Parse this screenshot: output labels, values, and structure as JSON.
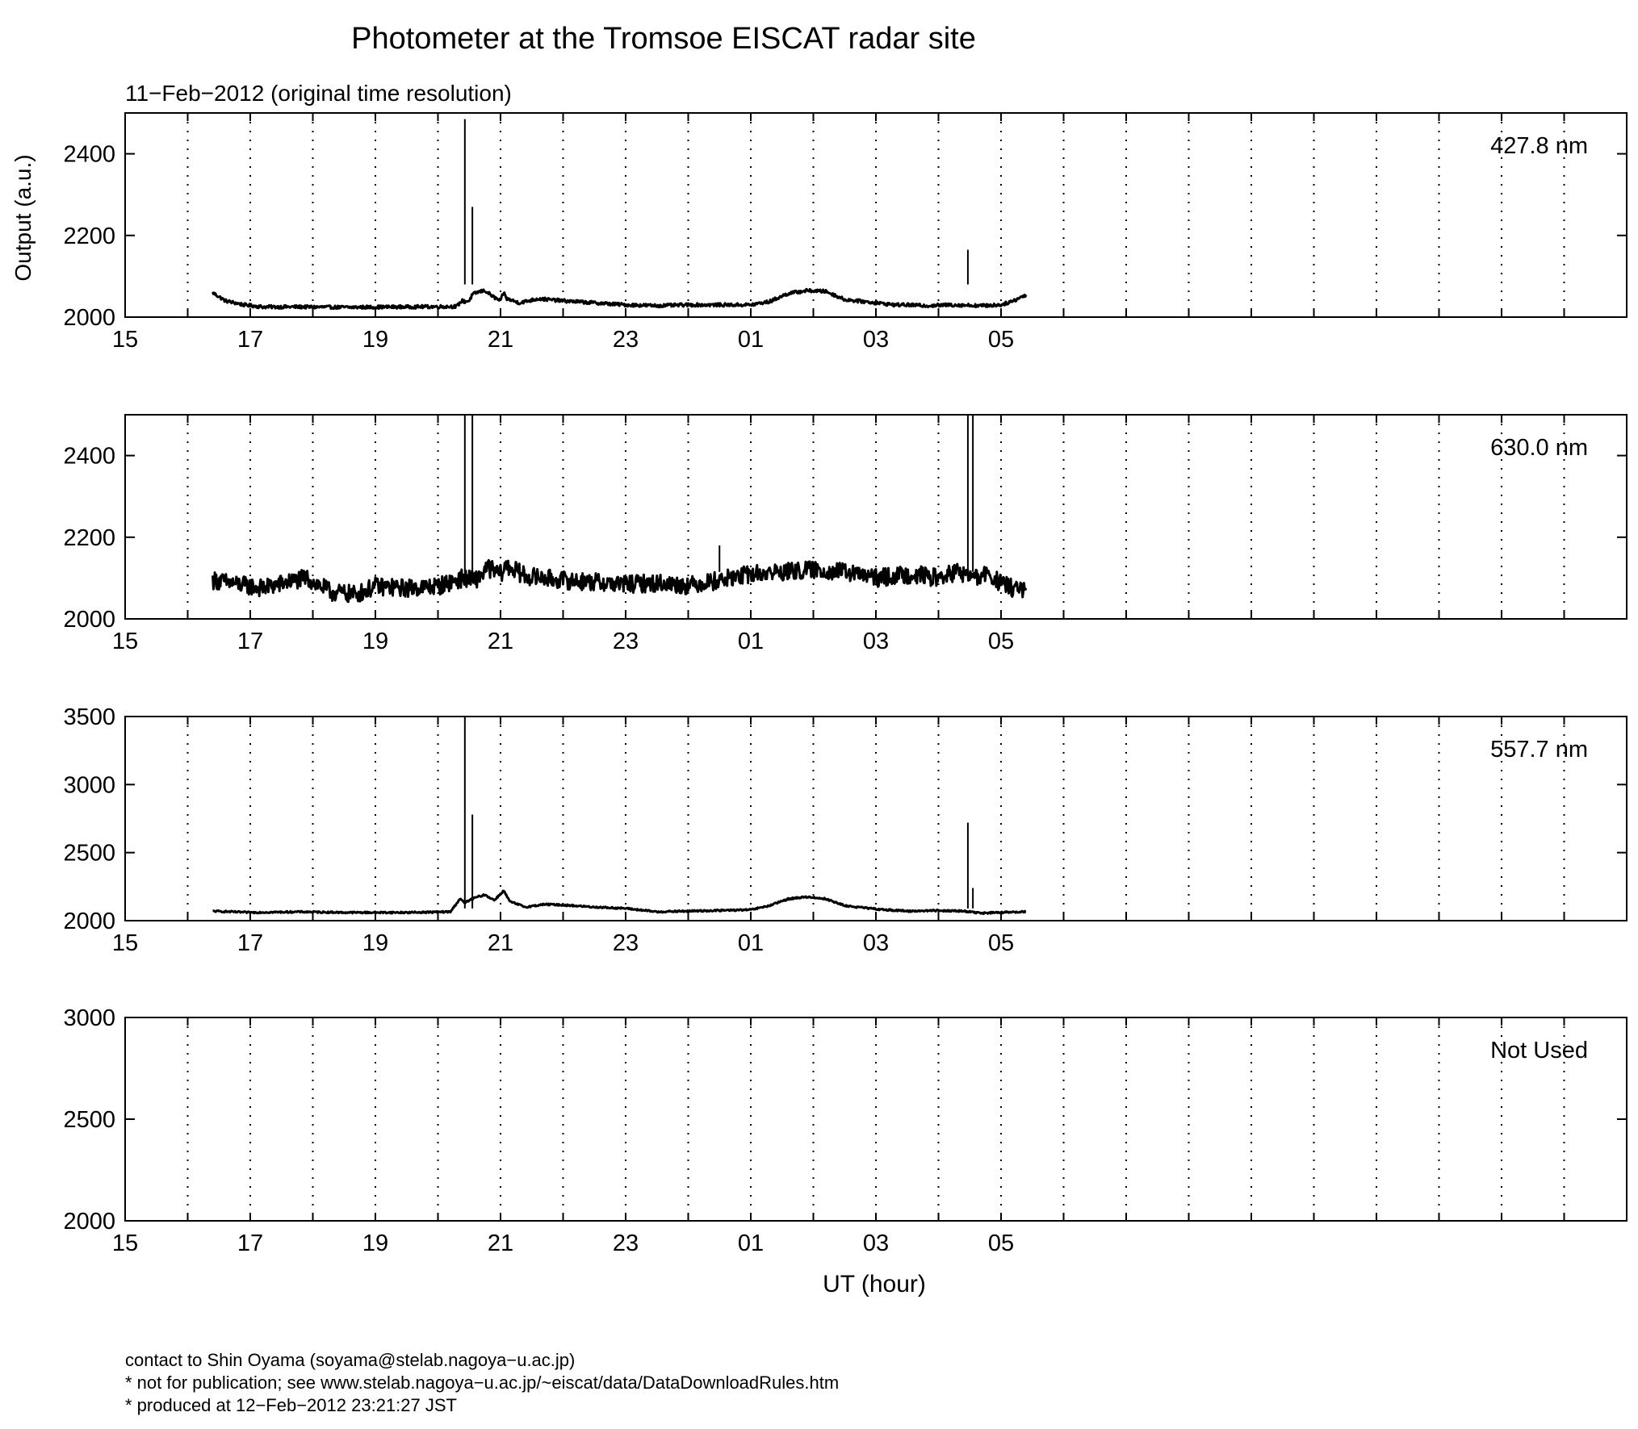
{
  "title": "Photometer at the Tromsoe EISCAT radar site",
  "subtitle": "11−Feb−2012 (original time resolution)",
  "ylabel": "Output (a.u.)",
  "xlabel": "UT (hour)",
  "footer": {
    "line1": "contact to Shin Oyama (soyama@stelab.nagoya−u.ac.jp)",
    "line2": "* not for publication; see www.stelab.nagoya−u.ac.jp/~eiscat/data/DataDownloadRules.htm",
    "line3": "* produced at 12−Feb−2012 23:21:27 JST"
  },
  "chart_data": [
    {
      "type": "line",
      "panel_label": "427.8 nm",
      "xlim": [
        15,
        39
      ],
      "ylim": [
        2000,
        2500
      ],
      "yticks": [
        2000,
        2200,
        2400
      ],
      "xtick_labels": [
        "15",
        "17",
        "19",
        "21",
        "23",
        "01",
        "03",
        "05"
      ],
      "grid": "dotted vertical",
      "noise_amplitude": 4,
      "series": [
        {
          "x": [
            16.4,
            16.6,
            16.9,
            17.2,
            17.8,
            18.5,
            19.5,
            20.3,
            20.38,
            20.43,
            20.5,
            20.55,
            20.65,
            20.75,
            20.9,
            21.0,
            21.05,
            21.1,
            21.3,
            21.6,
            22.0,
            22.5,
            23.0,
            23.5,
            24.0,
            24.5,
            25.0,
            25.3,
            25.6,
            25.9,
            26.2,
            26.5,
            27.0,
            27.3,
            27.5,
            27.8,
            28.2,
            28.7,
            29.0,
            29.2,
            29.4
          ],
          "y": [
            2060,
            2040,
            2030,
            2025,
            2025,
            2024,
            2025,
            2026,
            2040,
            2038,
            2040,
            2055,
            2062,
            2065,
            2048,
            2040,
            2060,
            2045,
            2035,
            2045,
            2040,
            2035,
            2030,
            2028,
            2030,
            2030,
            2030,
            2038,
            2058,
            2065,
            2063,
            2043,
            2035,
            2030,
            2030,
            2028,
            2030,
            2028,
            2030,
            2040,
            2055
          ]
        }
      ],
      "spikes": [
        {
          "x": 20.43,
          "y": 2485
        },
        {
          "x": 20.55,
          "y": 2270
        },
        {
          "x": 28.47,
          "y": 2165
        },
        {
          "x": 28.55,
          "y": 2065
        }
      ]
    },
    {
      "type": "line",
      "panel_label": "630.0 nm",
      "xlim": [
        15,
        39
      ],
      "ylim": [
        2000,
        2500
      ],
      "yticks": [
        2000,
        2200,
        2400
      ],
      "xtick_labels": [
        "15",
        "17",
        "19",
        "21",
        "23",
        "01",
        "03",
        "05"
      ],
      "grid": "dotted vertical",
      "noise_amplitude": 22,
      "series": [
        {
          "x": [
            16.4,
            16.8,
            17.2,
            17.6,
            17.9,
            18.3,
            18.7,
            19.0,
            19.5,
            20.0,
            20.4,
            20.6,
            20.8,
            21.0,
            21.1,
            21.4,
            22.0,
            22.5,
            23.0,
            23.5,
            24.0,
            24.5,
            25.0,
            25.5,
            26.0,
            26.5,
            27.0,
            27.3,
            27.6,
            28.0,
            28.3,
            28.6,
            28.8,
            29.0,
            29.2,
            29.4
          ],
          "y": [
            2095,
            2085,
            2075,
            2090,
            2100,
            2065,
            2060,
            2080,
            2075,
            2080,
            2100,
            2095,
            2125,
            2110,
            2130,
            2105,
            2095,
            2090,
            2085,
            2088,
            2082,
            2095,
            2110,
            2115,
            2120,
            2115,
            2100,
            2105,
            2110,
            2100,
            2115,
            2100,
            2110,
            2085,
            2075,
            2070
          ]
        }
      ],
      "spikes": [
        {
          "x": 20.43,
          "y": 2500
        },
        {
          "x": 20.55,
          "y": 2500
        },
        {
          "x": 28.47,
          "y": 2500
        },
        {
          "x": 28.55,
          "y": 2500
        },
        {
          "x": 24.5,
          "y": 2180
        }
      ]
    },
    {
      "type": "line",
      "panel_label": "557.7 nm",
      "xlim": [
        15,
        39
      ],
      "ylim": [
        2000,
        3500
      ],
      "yticks": [
        2000,
        2500,
        3000,
        3500
      ],
      "xtick_labels": [
        "15",
        "17",
        "19",
        "21",
        "23",
        "01",
        "03",
        "05"
      ],
      "grid": "dotted vertical",
      "noise_amplitude": 6,
      "series": [
        {
          "x": [
            16.4,
            17.0,
            17.8,
            18.5,
            19.5,
            20.2,
            20.35,
            20.43,
            20.5,
            20.6,
            20.75,
            20.9,
            21.05,
            21.15,
            21.4,
            21.7,
            22.0,
            22.5,
            23.0,
            23.5,
            24.0,
            24.5,
            25.0,
            25.3,
            25.6,
            25.9,
            26.2,
            26.5,
            27.0,
            27.5,
            28.0,
            28.4,
            28.7,
            29.0,
            29.4
          ],
          "y": [
            2070,
            2060,
            2065,
            2060,
            2060,
            2065,
            2160,
            2130,
            2150,
            2170,
            2190,
            2150,
            2220,
            2140,
            2100,
            2120,
            2115,
            2100,
            2090,
            2065,
            2070,
            2075,
            2080,
            2110,
            2160,
            2175,
            2160,
            2110,
            2085,
            2070,
            2075,
            2070,
            2055,
            2060,
            2065
          ]
        }
      ],
      "spikes": [
        {
          "x": 20.43,
          "y": 3500
        },
        {
          "x": 20.55,
          "y": 2780
        },
        {
          "x": 28.47,
          "y": 2720
        },
        {
          "x": 28.55,
          "y": 2240
        }
      ]
    },
    {
      "type": "line",
      "panel_label": "Not Used",
      "xlim": [
        15,
        39
      ],
      "ylim": [
        2000,
        3000
      ],
      "yticks": [
        2000,
        2500,
        3000
      ],
      "xtick_labels": [
        "15",
        "17",
        "19",
        "21",
        "23",
        "01",
        "03",
        "05"
      ],
      "grid": "dotted vertical",
      "noise_amplitude": 0,
      "series": []
    }
  ]
}
